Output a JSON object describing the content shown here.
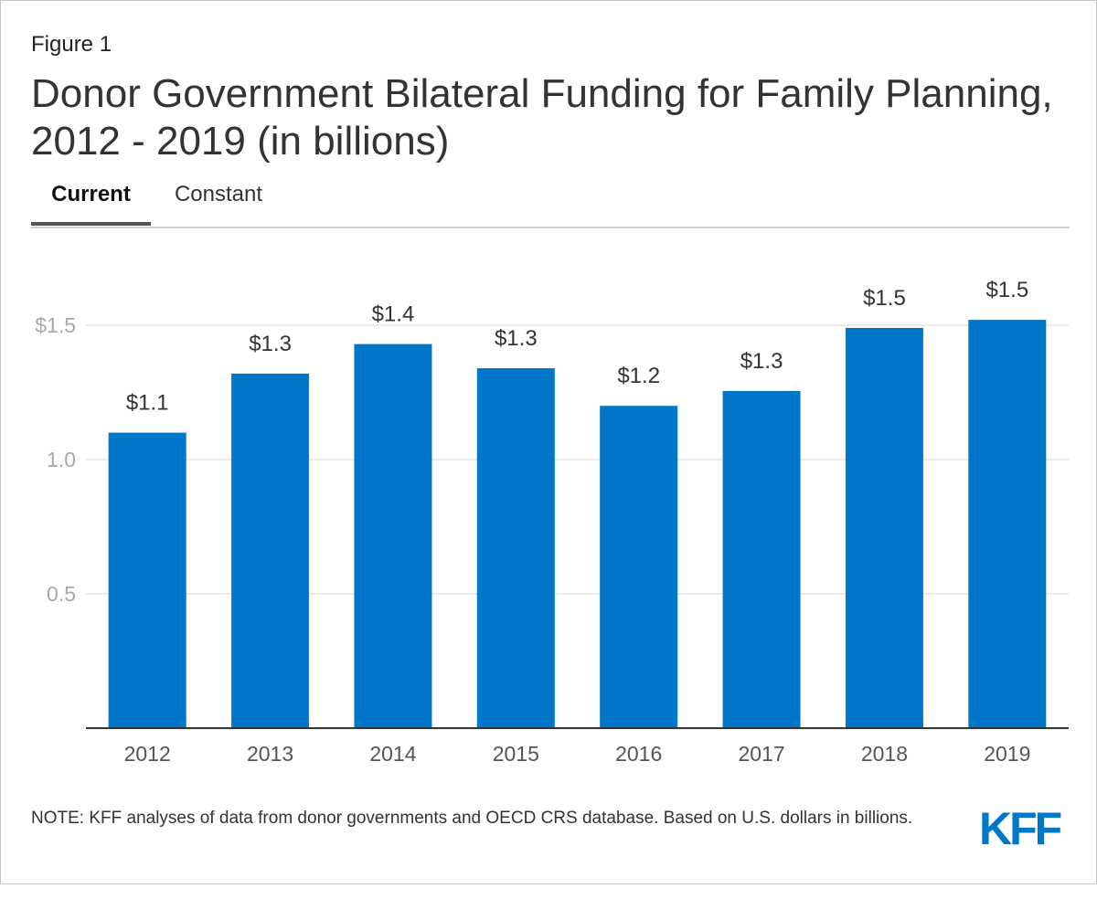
{
  "figure_label": "Figure 1",
  "title": "Donor Government Bilateral Funding for Family Planning, 2012 - 2019 (in billions)",
  "tabs": {
    "current": "Current",
    "constant": "Constant",
    "selected": "Current"
  },
  "note": "NOTE: KFF analyses of data from donor governments and OECD CRS database. Based on U.S. dollars in billions.",
  "logo_text": "KFF",
  "colors": {
    "bar": "#0077c8",
    "logo": "#0077c8",
    "grid": "#e3e3e3",
    "axis": "#333333",
    "tick": "#a8a8a8"
  },
  "chart_data": {
    "type": "bar",
    "categories": [
      "2012",
      "2013",
      "2014",
      "2015",
      "2016",
      "2017",
      "2018",
      "2019"
    ],
    "values": [
      1.1,
      1.32,
      1.43,
      1.34,
      1.2,
      1.255,
      1.49,
      1.52
    ],
    "data_labels": [
      "$1.1",
      "$1.3",
      "$1.4",
      "$1.3",
      "$1.2",
      "$1.3",
      "$1.5",
      "$1.5"
    ],
    "y_ticks": [
      0.5,
      1.0,
      1.5
    ],
    "y_tick_labels": [
      "0.5",
      "1.0",
      "$1.5"
    ],
    "ylim": [
      0,
      1.8
    ],
    "grid": true,
    "xlabel": "",
    "ylabel": ""
  }
}
